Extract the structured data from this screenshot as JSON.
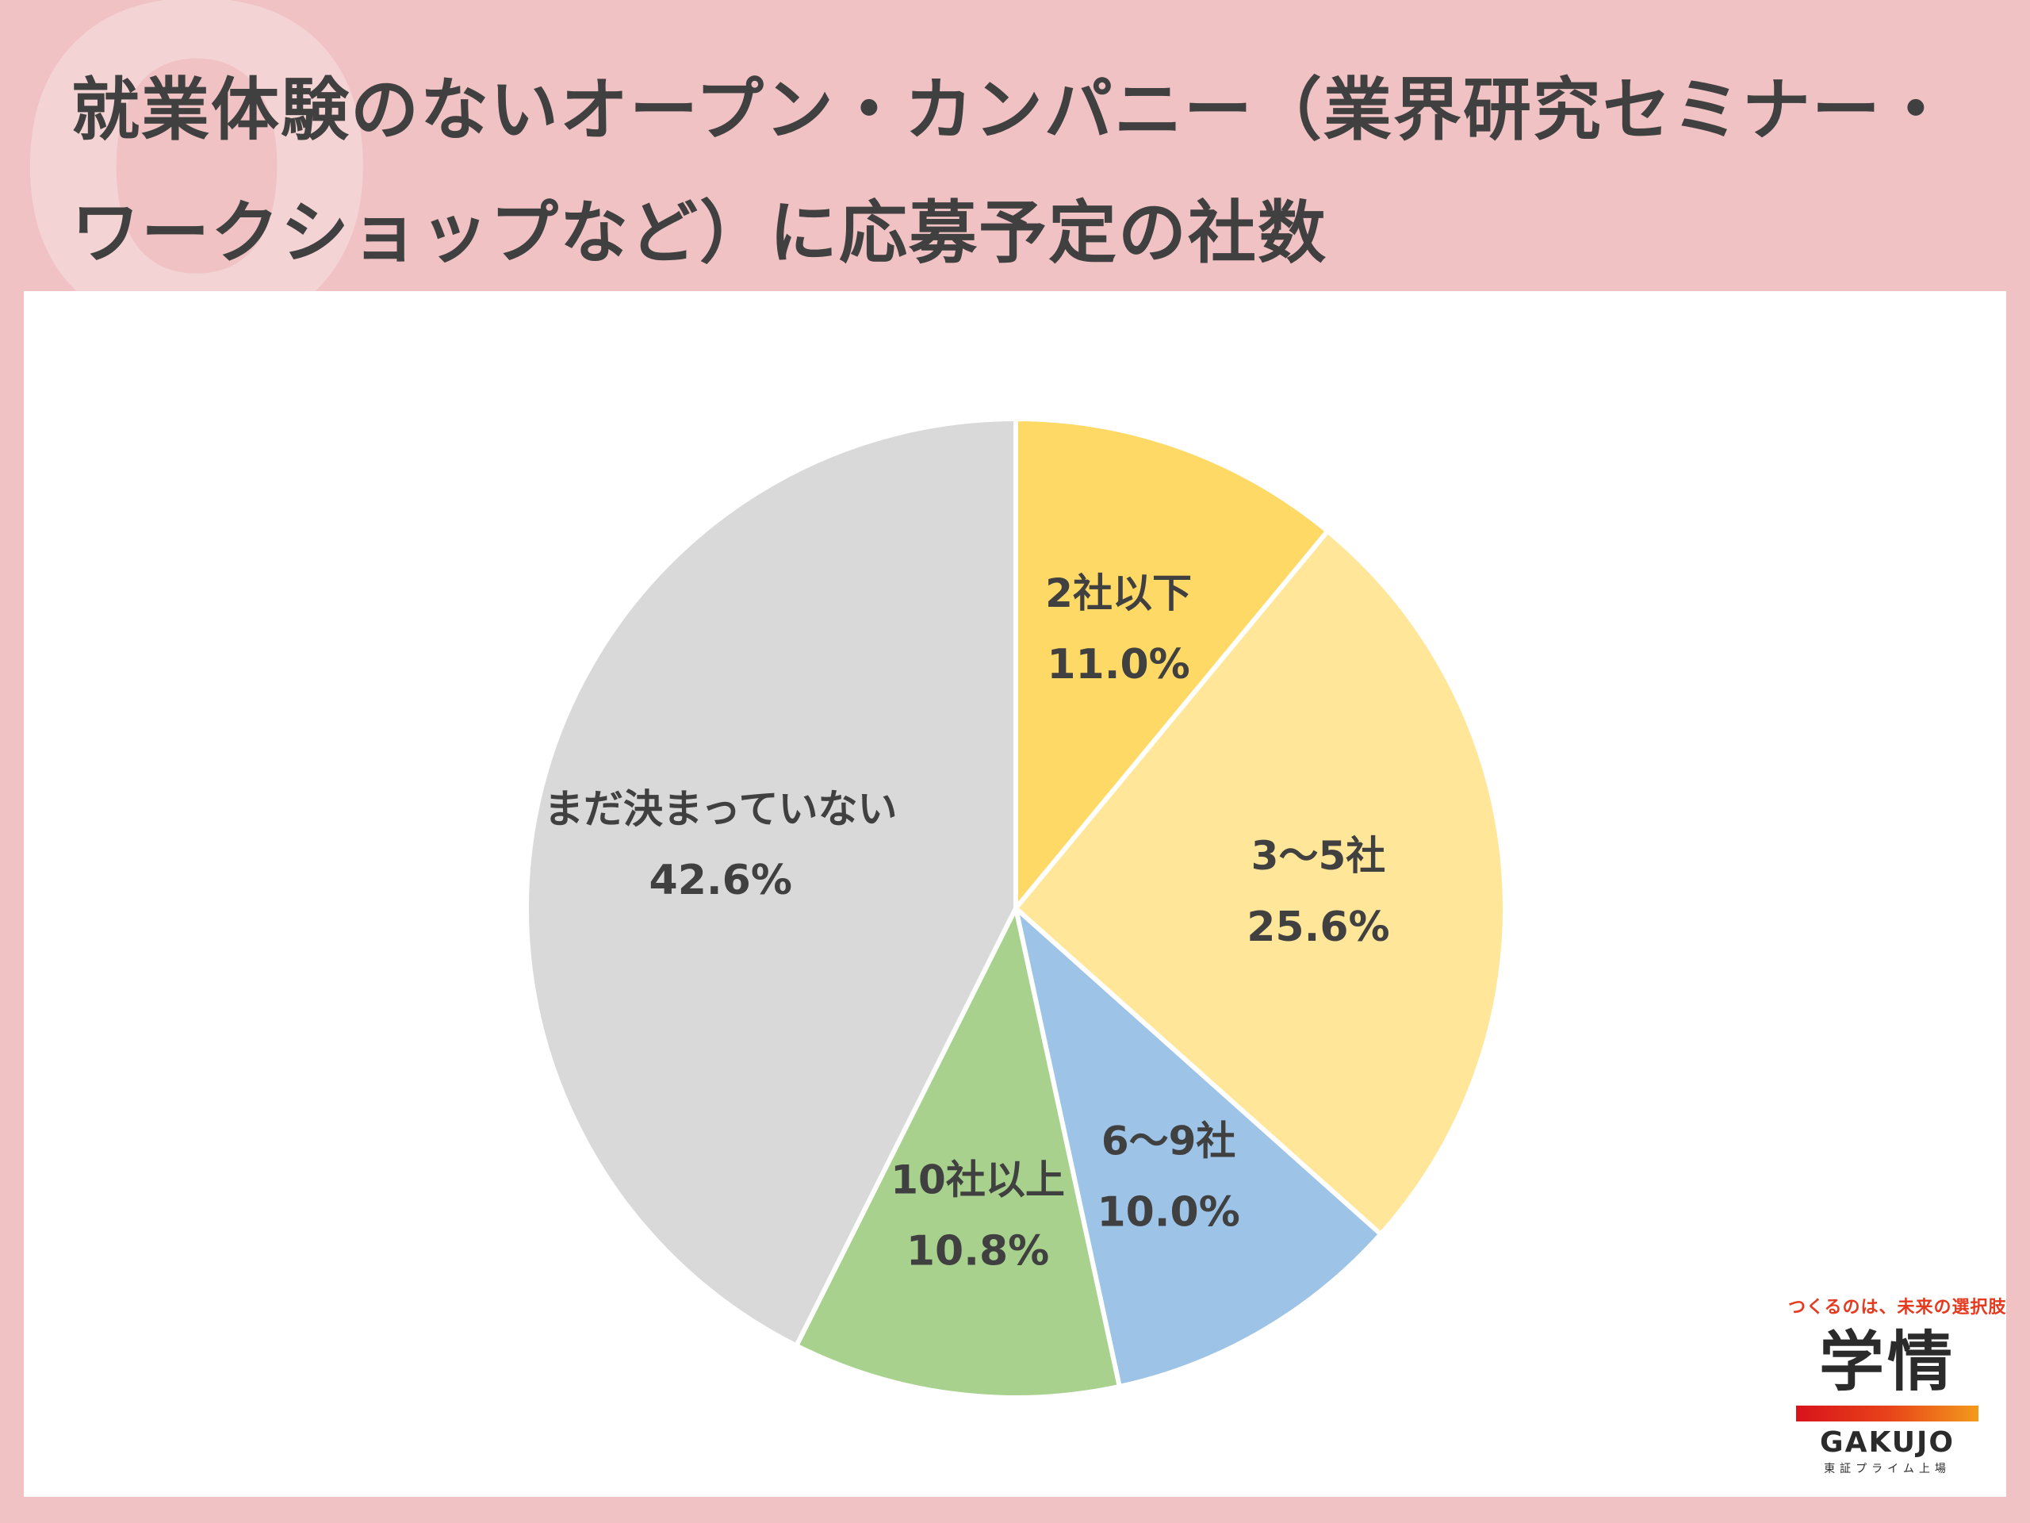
{
  "header": {
    "title_line1": "就業体験のないオープン・カンパニー（業界研究セミナー・",
    "title_line2": "ワークショップなど）に応募予定の社数",
    "bg_letter": "Q"
  },
  "chart_data": {
    "type": "pie",
    "start_angle_deg": 0,
    "direction": "clockwise",
    "slices": [
      {
        "label": "2社以下",
        "value": 11.0,
        "value_text": "11.0%",
        "color": "#ffd966"
      },
      {
        "label": "3〜5社",
        "value": 25.6,
        "value_text": "25.6%",
        "color": "#ffe699"
      },
      {
        "label": "6〜9社",
        "value": 10.0,
        "value_text": "10.0%",
        "color": "#9dc3e6"
      },
      {
        "label": "10社以上",
        "value": 10.8,
        "value_text": "10.8%",
        "color": "#a9d18e"
      },
      {
        "label": "まだ決まっていない",
        "value": 42.6,
        "value_text": "42.6%",
        "color": "#d9d9d9"
      }
    ]
  },
  "logo": {
    "tagline": "つくるのは、未来の選択肢",
    "kanji": "学情",
    "latin": "GAKUJO",
    "sub": "東証プライム上場"
  }
}
